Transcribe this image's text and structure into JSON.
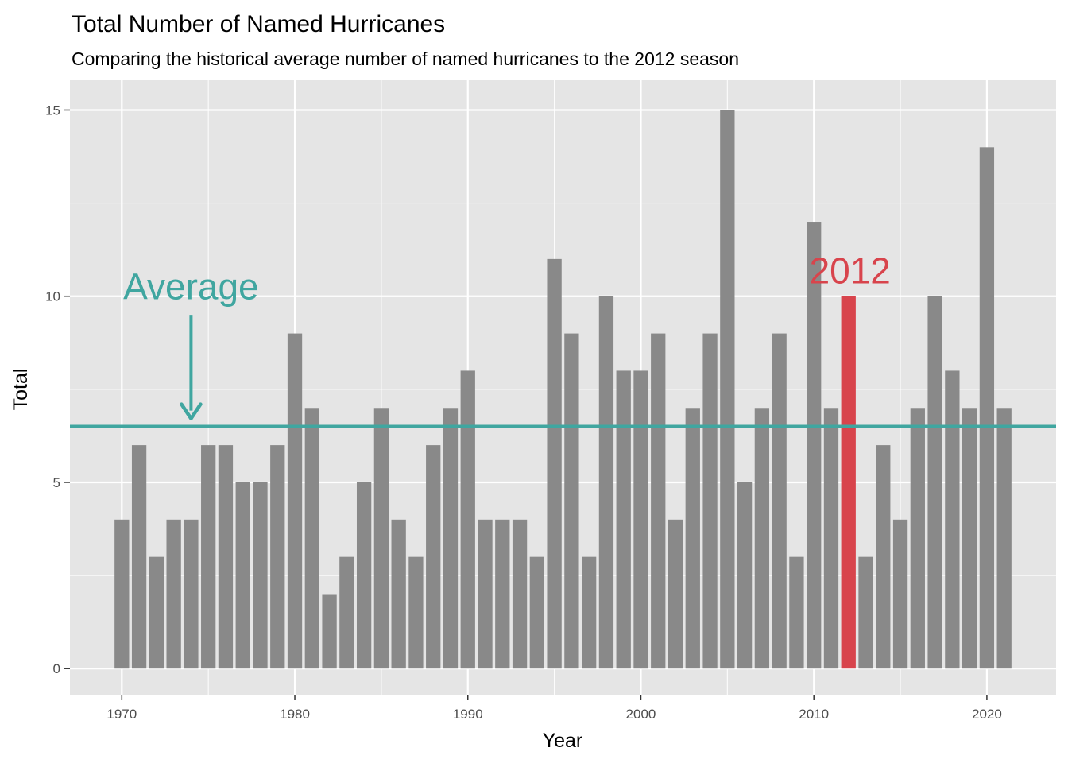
{
  "chart_data": {
    "type": "bar",
    "title": "Total Number of Named Hurricanes",
    "subtitle": "Comparing the historical average number of named hurricanes to the 2012 season",
    "xlabel": "Year",
    "ylabel": "Total",
    "xlim": [
      1967,
      2024
    ],
    "ylim": [
      -0.7,
      15.8
    ],
    "x_ticks": [
      1970,
      1980,
      1990,
      2000,
      2010,
      2020
    ],
    "y_ticks": [
      0,
      5,
      10,
      15
    ],
    "x_tick_labels": [
      "1970",
      "1980",
      "1990",
      "2000",
      "2010",
      "2020"
    ],
    "y_tick_labels": [
      "0",
      "5",
      "10",
      "15"
    ],
    "years": [
      1970,
      1971,
      1972,
      1973,
      1974,
      1975,
      1976,
      1977,
      1978,
      1979,
      1980,
      1981,
      1982,
      1983,
      1984,
      1985,
      1986,
      1987,
      1988,
      1989,
      1990,
      1991,
      1992,
      1993,
      1994,
      1995,
      1996,
      1997,
      1998,
      1999,
      2000,
      2001,
      2002,
      2003,
      2004,
      2005,
      2006,
      2007,
      2008,
      2009,
      2010,
      2011,
      2012,
      2013,
      2014,
      2015,
      2016,
      2017,
      2018,
      2019,
      2020,
      2021
    ],
    "values": [
      4,
      6,
      3,
      4,
      4,
      6,
      6,
      5,
      5,
      6,
      9,
      7,
      2,
      3,
      5,
      7,
      4,
      3,
      6,
      7,
      8,
      4,
      4,
      4,
      3,
      11,
      9,
      3,
      10,
      8,
      8,
      9,
      4,
      7,
      9,
      15,
      5,
      7,
      9,
      3,
      12,
      7,
      10,
      3,
      6,
      4,
      7,
      10,
      8,
      7,
      14,
      7
    ],
    "highlight_year": 2012,
    "average": 6.5,
    "grid": true,
    "legend": "none",
    "colors": {
      "bar": "#898989",
      "highlight": "#d8444c",
      "average_line": "#40a6a0",
      "panel": "#e5e5e5",
      "grid": "#ffffff"
    },
    "annotations": {
      "average_label": "Average",
      "average_label_x": 1974,
      "average_label_y": 10,
      "highlight_label": "2012",
      "arrow_x": 1974,
      "arrow_from_y": 9.5,
      "arrow_to_y": 6.8
    }
  }
}
